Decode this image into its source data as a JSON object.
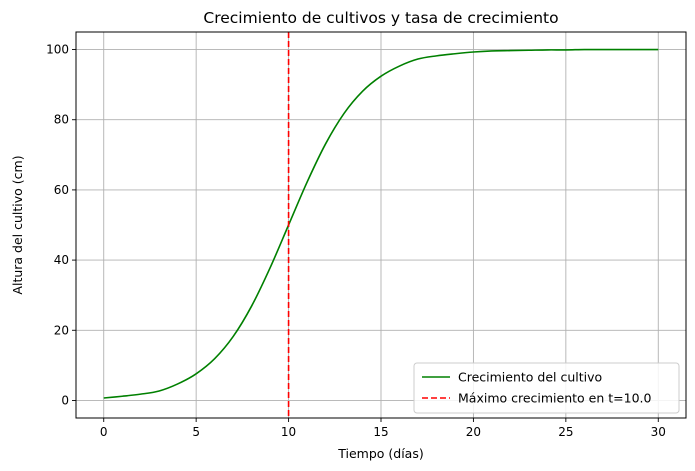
{
  "chart_data": {
    "type": "line",
    "title": "Crecimiento de cultivos y tasa de crecimiento",
    "xlabel": "Tiempo (días)",
    "ylabel": "Altura del cultivo (cm)",
    "xlim": [
      -1.5,
      31.5
    ],
    "ylim": [
      -5,
      105
    ],
    "xticks": [
      0,
      5,
      10,
      15,
      20,
      25,
      30
    ],
    "yticks": [
      0,
      20,
      40,
      60,
      80,
      100
    ],
    "grid": true,
    "legend_position": "bottom-right",
    "series": [
      {
        "name": "Crecimiento del cultivo",
        "color": "#008000",
        "style": "solid",
        "x": [
          0,
          1,
          2,
          3,
          4,
          5,
          6,
          7,
          8,
          9,
          10,
          11,
          12,
          13,
          14,
          15,
          16,
          17,
          18,
          19,
          20,
          21,
          22,
          23,
          24,
          25,
          26,
          27,
          28,
          29,
          30
        ],
        "y": [
          0.7,
          1.2,
          1.8,
          2.7,
          4.7,
          7.6,
          11.9,
          18.2,
          26.9,
          37.8,
          50.0,
          62.2,
          73.1,
          81.8,
          88.1,
          92.4,
          95.3,
          97.3,
          98.2,
          98.8,
          99.3,
          99.6,
          99.7,
          99.8,
          99.9,
          99.9,
          100,
          100,
          100,
          100,
          100
        ]
      },
      {
        "name": "Máximo crecimiento en t=10.0",
        "color": "#ff0000",
        "style": "dashed",
        "x": [
          10,
          10
        ],
        "y": [
          -5,
          105
        ]
      }
    ]
  }
}
